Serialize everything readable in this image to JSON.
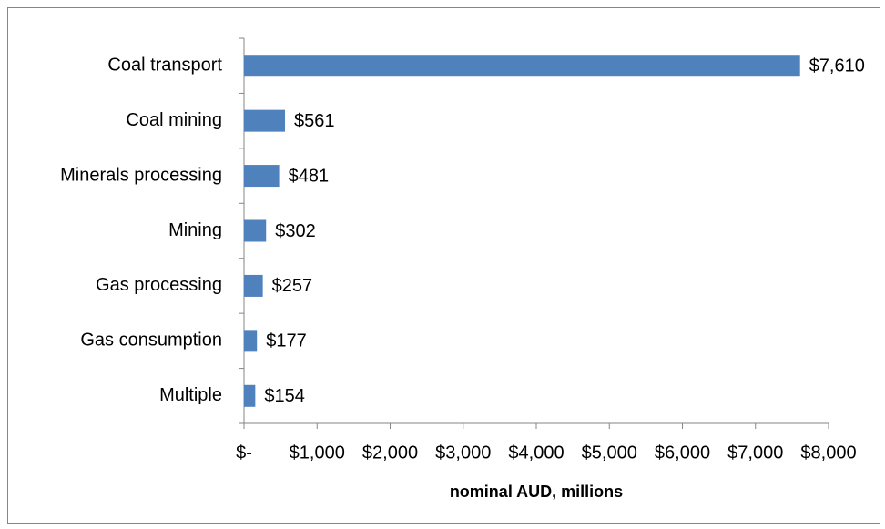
{
  "chart_data": {
    "type": "barh",
    "categories": [
      "Coal transport",
      "Coal mining",
      "Minerals processing",
      "Mining",
      "Gas processing",
      "Gas consumption",
      "Multiple"
    ],
    "values": [
      7610,
      561,
      481,
      302,
      257,
      177,
      154
    ],
    "value_labels": [
      "$7,610",
      "$561",
      "$481",
      "$302",
      "$257",
      "$177",
      "$154"
    ],
    "color": "#4f81bd",
    "xlabel": "nominal AUD, millions",
    "xlim": [
      0,
      8000
    ],
    "xticks": [
      {
        "value": 0,
        "label": "$-"
      },
      {
        "value": 1000,
        "label": "$1,000"
      },
      {
        "value": 2000,
        "label": "$2,000"
      },
      {
        "value": 3000,
        "label": "$3,000"
      },
      {
        "value": 4000,
        "label": "$4,000"
      },
      {
        "value": 5000,
        "label": "$5,000"
      },
      {
        "value": 6000,
        "label": "$6,000"
      },
      {
        "value": 7000,
        "label": "$7,000"
      },
      {
        "value": 8000,
        "label": "$8,000"
      }
    ],
    "grid": false
  }
}
